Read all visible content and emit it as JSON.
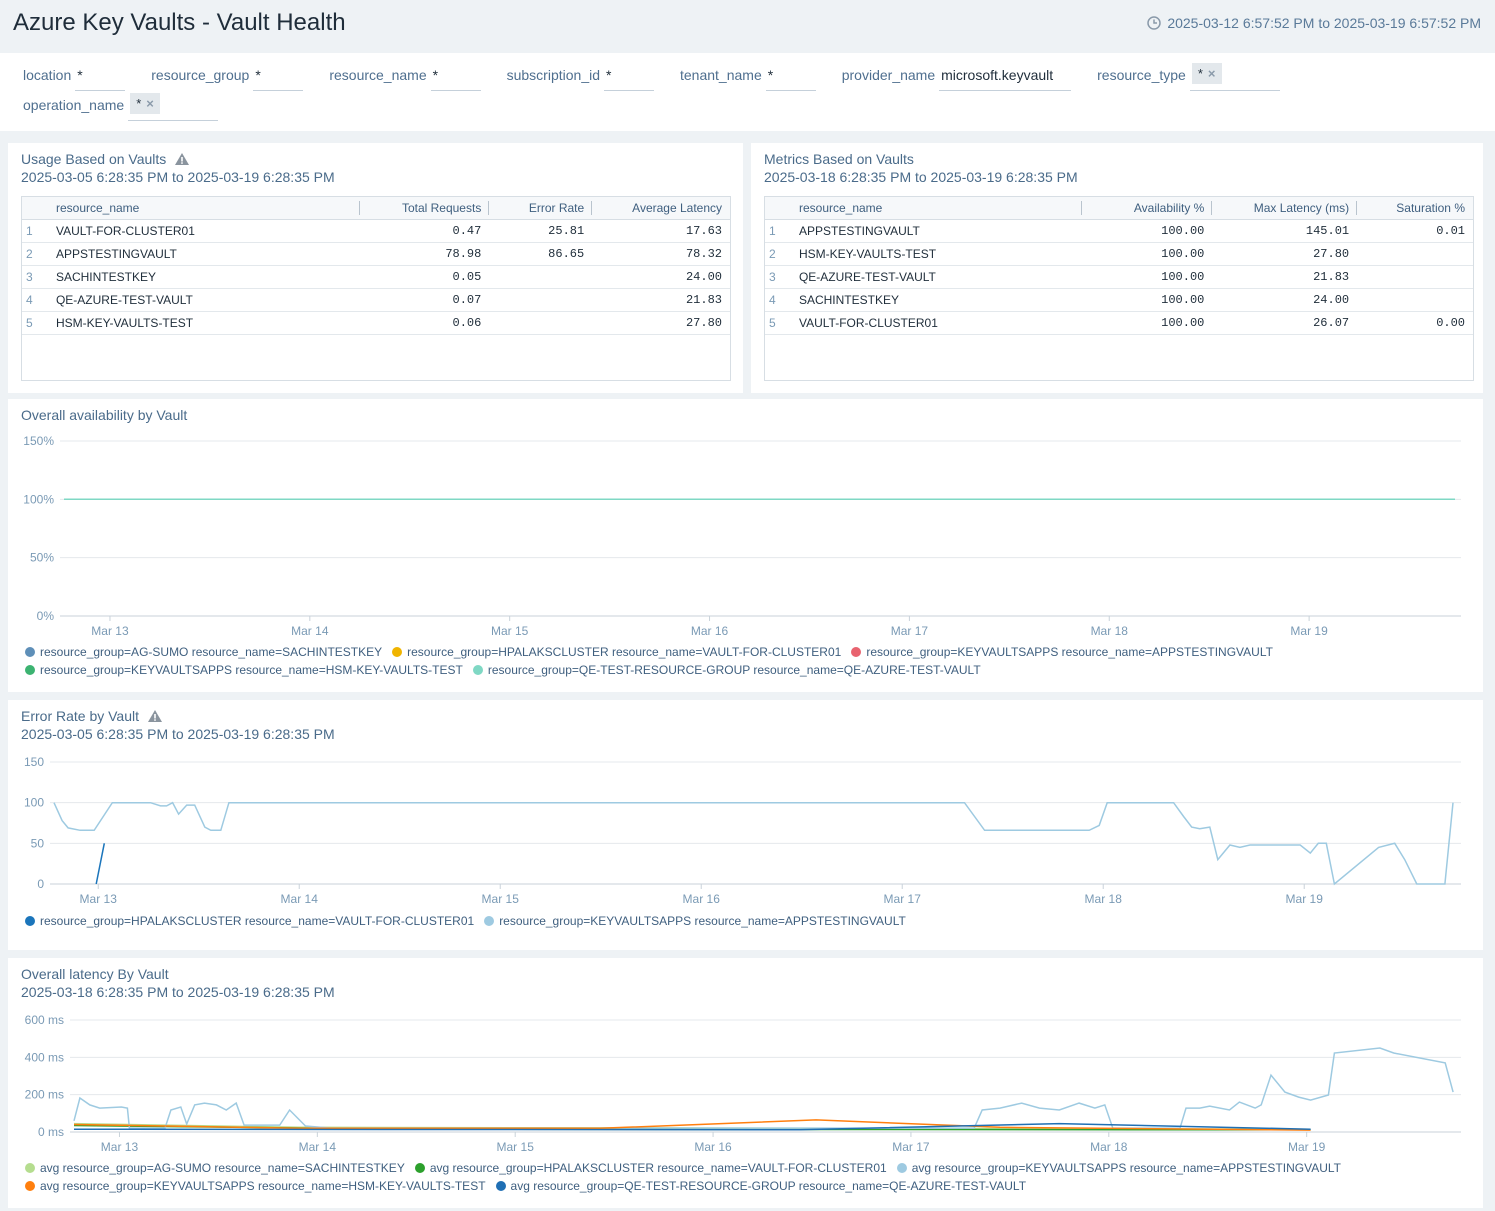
{
  "header": {
    "title": "Azure Key Vaults - Vault Health",
    "time_range": "2025-03-12 6:57:52 PM to 2025-03-19 6:57:52 PM"
  },
  "filters": [
    {
      "label": "location",
      "value": "*"
    },
    {
      "label": "resource_group",
      "value": "*"
    },
    {
      "label": "resource_name",
      "value": "*"
    },
    {
      "label": "subscription_id",
      "value": "*"
    },
    {
      "label": "tenant_name",
      "value": "*"
    },
    {
      "label": "provider_name",
      "value": "microsoft.keyvault"
    },
    {
      "label": "resource_type",
      "value": "*",
      "chip": true
    },
    {
      "label": "operation_name",
      "value": "*",
      "chip": true
    }
  ],
  "tables": [
    {
      "title": "Usage Based on Vaults",
      "subtitle": "2025-03-05 6:28:35 PM to 2025-03-19 6:28:35 PM",
      "columns": [
        "resource_name",
        "Total Requests",
        "Error Rate",
        "Average Latency"
      ],
      "rows": [
        [
          "1",
          "VAULT-FOR-CLUSTER01",
          "0.47",
          "25.81",
          "17.63"
        ],
        [
          "2",
          "APPSTESTINGVAULT",
          "78.98",
          "86.65",
          "78.32"
        ],
        [
          "3",
          "SACHINTESTKEY",
          "0.05",
          null,
          "24.00"
        ],
        [
          "4",
          "QE-AZURE-TEST-VAULT",
          "0.07",
          null,
          "21.83"
        ],
        [
          "5",
          "HSM-KEY-VAULTS-TEST",
          "0.06",
          null,
          "27.80"
        ]
      ]
    },
    {
      "title": "Metrics Based on Vaults",
      "subtitle": "2025-03-18 6:28:35 PM to 2025-03-19 6:28:35 PM",
      "columns": [
        "resource_name",
        "Availability %",
        "Max Latency (ms)",
        "Saturation %"
      ],
      "rows": [
        [
          "1",
          "APPSTESTINGVAULT",
          "100.00",
          "145.01",
          "0.01"
        ],
        [
          "2",
          "HSM-KEY-VAULTS-TEST",
          "100.00",
          "27.80",
          null
        ],
        [
          "3",
          "QE-AZURE-TEST-VAULT",
          "100.00",
          "21.83",
          null
        ],
        [
          "4",
          "SACHINTESTKEY",
          "100.00",
          "24.00",
          null
        ],
        [
          "5",
          "VAULT-FOR-CLUSTER01",
          "100.00",
          "26.07",
          "0.00"
        ]
      ]
    }
  ],
  "chart_data": [
    {
      "type": "line",
      "title": "Overall availability by Vault",
      "xlim": [
        12.75,
        19.76
      ],
      "xticks": [
        {
          "value": 13,
          "label": "Mar 13"
        },
        {
          "value": 14,
          "label": "Mar 14"
        },
        {
          "value": 15,
          "label": "Mar 15"
        },
        {
          "value": 16,
          "label": "Mar 16"
        },
        {
          "value": 17,
          "label": "Mar 17"
        },
        {
          "value": 18,
          "label": "Mar 18"
        },
        {
          "value": 19,
          "label": "Mar 19"
        }
      ],
      "ylim": [
        0,
        150
      ],
      "yticks": [
        {
          "value": 0,
          "label": "0%"
        },
        {
          "value": 50,
          "label": "50%"
        },
        {
          "value": 100,
          "label": "100%"
        },
        {
          "value": 150,
          "label": "150%"
        }
      ],
      "grid": true,
      "series": [
        {
          "name": "resource_group=AG-SUMO resource_name=SACHINTESTKEY",
          "color": "#5e8fb8",
          "x": [
            12.77,
            19.73
          ],
          "values": [
            100,
            100
          ]
        },
        {
          "name": "resource_group=HPALAKSCLUSTER resource_name=VAULT-FOR-CLUSTER01",
          "color": "#f0b400",
          "x": [
            12.77,
            19.73
          ],
          "values": [
            100,
            100
          ]
        },
        {
          "name": "resource_group=KEYVAULTSAPPS resource_name=APPSTESTINGVAULT",
          "color": "#e8636f",
          "x": [
            12.77,
            19.73
          ],
          "values": [
            100,
            100
          ]
        },
        {
          "name": "resource_group=KEYVAULTSAPPS resource_name=HSM-KEY-VAULTS-TEST",
          "color": "#3cb371",
          "x": [
            12.77,
            19.73
          ],
          "values": [
            100,
            100
          ]
        },
        {
          "name": "resource_group=QE-TEST-RESOURCE-GROUP resource_name=QE-AZURE-TEST-VAULT",
          "color": "#7fd8c4",
          "x": [
            12.77,
            19.73
          ],
          "values": [
            100,
            100
          ]
        }
      ]
    },
    {
      "type": "line",
      "title": "Error Rate by Vault",
      "subtitle": "2025-03-05 6:28:35 PM to 2025-03-19 6:28:35 PM",
      "xlim": [
        12.76,
        19.78
      ],
      "xticks": [
        {
          "value": 13,
          "label": "Mar 13"
        },
        {
          "value": 14,
          "label": "Mar 14"
        },
        {
          "value": 15,
          "label": "Mar 15"
        },
        {
          "value": 16,
          "label": "Mar 16"
        },
        {
          "value": 17,
          "label": "Mar 17"
        },
        {
          "value": 18,
          "label": "Mar 18"
        },
        {
          "value": 19,
          "label": "Mar 19"
        }
      ],
      "ylim": [
        0,
        150
      ],
      "yticks": [
        0,
        50,
        100,
        150
      ],
      "grid": true,
      "series": [
        {
          "name": "resource_group=HPALAKSCLUSTER resource_name=VAULT-FOR-CLUSTER01",
          "color": "#1b75bb",
          "x": [
            12.99,
            13.03
          ],
          "values": [
            0,
            50
          ]
        },
        {
          "name": "resource_group=KEYVAULTSAPPS resource_name=APPSTESTINGVAULT",
          "color": "#9ecae1",
          "x": [
            12.78,
            12.82,
            12.85,
            12.91,
            12.98,
            13.07,
            13.26,
            13.31,
            13.34,
            13.37,
            13.4,
            13.44,
            13.48,
            13.53,
            13.56,
            13.61,
            13.65,
            17.31,
            17.41,
            17.93,
            17.98,
            18.02,
            18.35,
            18.4,
            18.44,
            18.48,
            18.53,
            18.57,
            18.63,
            18.68,
            18.73,
            18.98,
            19.03,
            19.07,
            19.11,
            19.15,
            19.37,
            19.45,
            19.5,
            19.56,
            19.7,
            19.74
          ],
          "values": [
            100,
            78,
            69,
            66,
            66,
            100,
            100,
            96,
            96,
            100,
            86,
            97,
            97,
            70,
            66,
            66,
            100,
            100,
            66,
            66,
            72,
            100,
            100,
            83,
            70,
            68,
            70,
            30,
            48,
            45,
            48,
            48,
            38,
            50,
            50,
            0,
            45,
            50,
            30,
            0,
            0,
            100
          ]
        }
      ]
    },
    {
      "type": "line",
      "title": "Overall latency By Vault",
      "subtitle": "2025-03-18 6:28:35 PM to 2025-03-19 6:28:35 PM",
      "xlim": [
        12.75,
        19.78
      ],
      "xticks": [
        {
          "value": 13,
          "label": "Mar 13"
        },
        {
          "value": 14,
          "label": "Mar 14"
        },
        {
          "value": 15,
          "label": "Mar 15"
        },
        {
          "value": 16,
          "label": "Mar 16"
        },
        {
          "value": 17,
          "label": "Mar 17"
        },
        {
          "value": 18,
          "label": "Mar 18"
        },
        {
          "value": 19,
          "label": "Mar 19"
        }
      ],
      "ylim": [
        0,
        600
      ],
      "yticks": [
        {
          "value": 0,
          "label": "0 ms"
        },
        {
          "value": 200,
          "label": "200 ms"
        },
        {
          "value": 400,
          "label": "400 ms"
        },
        {
          "value": 600,
          "label": "600 ms"
        }
      ],
      "grid": true,
      "series": [
        {
          "name": "avg resource_group=AG-SUMO resource_name=SACHINTESTKEY",
          "color": "#b5dd8f",
          "x": [
            12.77,
            13.91,
            19.02
          ],
          "values": [
            45,
            25,
            15
          ]
        },
        {
          "name": "avg resource_group=HPALAKSCLUSTER resource_name=VAULT-FOR-CLUSTER01",
          "color": "#2ca02c",
          "x": [
            12.77,
            14.42,
            19.02
          ],
          "values": [
            35,
            15,
            12
          ]
        },
        {
          "name": "avg resource_group=KEYVAULTSAPPS resource_name=APPSTESTINGVAULT",
          "color": "#9ecae1",
          "x": [
            12.77,
            12.8,
            12.85,
            12.9,
            13.01,
            13.04,
            13.05,
            13.23,
            13.26,
            13.31,
            13.34,
            13.38,
            13.43,
            13.49,
            13.54,
            13.59,
            13.63,
            13.81,
            13.86,
            13.94,
            14.07,
            17.32,
            17.36,
            17.45,
            17.56,
            17.65,
            17.75,
            17.85,
            17.93,
            17.98,
            18.02,
            18.36,
            18.39,
            18.46,
            18.51,
            18.61,
            18.66,
            18.74,
            18.77,
            18.82,
            18.89,
            18.96,
            19.02,
            19.11,
            19.14,
            19.37,
            19.44,
            19.7,
            19.74
          ],
          "values": [
            60,
            182,
            145,
            128,
            134,
            128,
            21,
            21,
            118,
            134,
            43,
            145,
            155,
            145,
            118,
            155,
            37,
            37,
            118,
            32,
            21,
            21,
            118,
            128,
            155,
            128,
            118,
            155,
            128,
            145,
            21,
            21,
            128,
            128,
            139,
            118,
            160,
            128,
            145,
            305,
            214,
            187,
            171,
            198,
            423,
            450,
            423,
            370,
            214
          ]
        },
        {
          "name": "avg resource_group=KEYVAULTSAPPS resource_name=HSM-KEY-VAULTS-TEST",
          "color": "#ff7f0e",
          "x": [
            12.77,
            13.91,
            15.43,
            16.52,
            17.45,
            19.02
          ],
          "values": [
            40,
            20,
            20,
            65,
            25,
            10
          ]
        },
        {
          "name": "avg resource_group=QE-TEST-RESOURCE-GROUP resource_name=QE-AZURE-TEST-VAULT",
          "color": "#1f6fb4",
          "x": [
            12.77,
            16.44,
            17.75,
            19.02
          ],
          "values": [
            15,
            12,
            45,
            15
          ]
        }
      ]
    }
  ]
}
